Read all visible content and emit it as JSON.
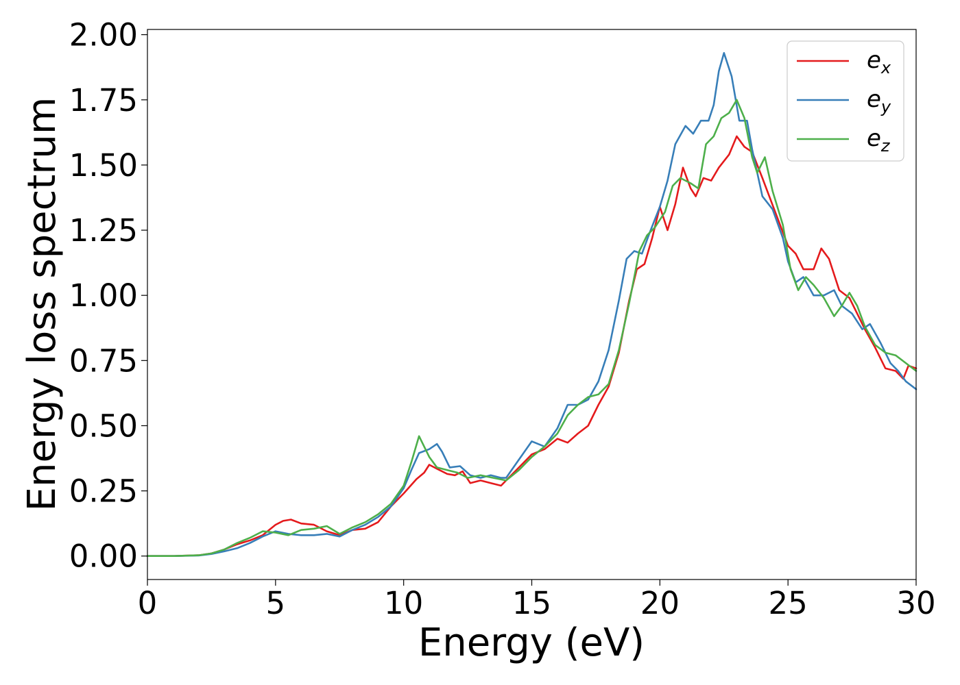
{
  "chart_data": {
    "type": "line",
    "title": "",
    "xlabel": "Energy (eV)",
    "ylabel": "Energy loss spectrum",
    "xlim": [
      0,
      30
    ],
    "ylim": [
      -0.09,
      2.02
    ],
    "xticks": [
      0,
      5,
      10,
      15,
      20,
      25,
      30
    ],
    "xtick_labels": [
      "0",
      "5",
      "10",
      "15",
      "20",
      "25",
      "30"
    ],
    "yticks": [
      0,
      0.25,
      0.5,
      0.75,
      1.0,
      1.25,
      1.5,
      1.75,
      2.0
    ],
    "ytick_labels": [
      "0.00",
      "0.25",
      "0.50",
      "0.75",
      "1.00",
      "1.25",
      "1.50",
      "1.75",
      "2.00"
    ],
    "grid": false,
    "legend": {
      "position": "top-right"
    },
    "series": [
      {
        "name": "e_x",
        "label_base": "e",
        "label_sub": "x",
        "color": "#e41a1c",
        "points": [
          [
            0,
            0
          ],
          [
            1,
            0
          ],
          [
            2,
            0.003
          ],
          [
            2.5,
            0.01
          ],
          [
            3,
            0.025
          ],
          [
            3.5,
            0.045
          ],
          [
            4,
            0.06
          ],
          [
            4.5,
            0.08
          ],
          [
            5,
            0.12
          ],
          [
            5.3,
            0.135
          ],
          [
            5.6,
            0.14
          ],
          [
            6,
            0.125
          ],
          [
            6.5,
            0.12
          ],
          [
            7,
            0.095
          ],
          [
            7.5,
            0.08
          ],
          [
            8,
            0.1
          ],
          [
            8.5,
            0.105
          ],
          [
            9,
            0.13
          ],
          [
            9.5,
            0.19
          ],
          [
            10,
            0.24
          ],
          [
            10.5,
            0.295
          ],
          [
            10.8,
            0.32
          ],
          [
            11,
            0.35
          ],
          [
            11.3,
            0.335
          ],
          [
            11.7,
            0.315
          ],
          [
            12,
            0.31
          ],
          [
            12.3,
            0.325
          ],
          [
            12.6,
            0.28
          ],
          [
            13,
            0.29
          ],
          [
            13.4,
            0.28
          ],
          [
            13.8,
            0.27
          ],
          [
            14,
            0.29
          ],
          [
            14.5,
            0.34
          ],
          [
            15,
            0.39
          ],
          [
            15.5,
            0.41
          ],
          [
            16,
            0.45
          ],
          [
            16.4,
            0.435
          ],
          [
            16.8,
            0.47
          ],
          [
            17.2,
            0.5
          ],
          [
            17.6,
            0.58
          ],
          [
            18,
            0.65
          ],
          [
            18.4,
            0.78
          ],
          [
            18.8,
            0.98
          ],
          [
            19.1,
            1.1
          ],
          [
            19.4,
            1.12
          ],
          [
            19.7,
            1.22
          ],
          [
            20,
            1.34
          ],
          [
            20.3,
            1.25
          ],
          [
            20.6,
            1.35
          ],
          [
            20.9,
            1.49
          ],
          [
            21.2,
            1.41
          ],
          [
            21.4,
            1.38
          ],
          [
            21.7,
            1.45
          ],
          [
            22,
            1.44
          ],
          [
            22.3,
            1.49
          ],
          [
            22.7,
            1.54
          ],
          [
            23,
            1.61
          ],
          [
            23.3,
            1.57
          ],
          [
            23.6,
            1.55
          ],
          [
            24,
            1.45
          ],
          [
            24.5,
            1.32
          ],
          [
            25,
            1.19
          ],
          [
            25.3,
            1.16
          ],
          [
            25.6,
            1.1
          ],
          [
            26,
            1.1
          ],
          [
            26.3,
            1.18
          ],
          [
            26.6,
            1.14
          ],
          [
            27,
            1.02
          ],
          [
            27.4,
            0.99
          ],
          [
            27.7,
            0.93
          ],
          [
            28,
            0.87
          ],
          [
            28.4,
            0.8
          ],
          [
            28.8,
            0.72
          ],
          [
            29.2,
            0.71
          ],
          [
            29.5,
            0.68
          ],
          [
            29.7,
            0.73
          ],
          [
            30,
            0.72
          ]
        ]
      },
      {
        "name": "e_y",
        "label_base": "e",
        "label_sub": "y",
        "color": "#377eb8",
        "points": [
          [
            0,
            0
          ],
          [
            1,
            0
          ],
          [
            2,
            0.002
          ],
          [
            2.5,
            0.008
          ],
          [
            3,
            0.018
          ],
          [
            3.5,
            0.03
          ],
          [
            4,
            0.05
          ],
          [
            4.5,
            0.075
          ],
          [
            5,
            0.095
          ],
          [
            5.5,
            0.085
          ],
          [
            6,
            0.08
          ],
          [
            6.5,
            0.08
          ],
          [
            7,
            0.085
          ],
          [
            7.5,
            0.075
          ],
          [
            8,
            0.1
          ],
          [
            8.5,
            0.12
          ],
          [
            9,
            0.15
          ],
          [
            9.5,
            0.19
          ],
          [
            10,
            0.26
          ],
          [
            10.3,
            0.33
          ],
          [
            10.6,
            0.395
          ],
          [
            11,
            0.41
          ],
          [
            11.3,
            0.43
          ],
          [
            11.5,
            0.4
          ],
          [
            11.8,
            0.34
          ],
          [
            12.2,
            0.345
          ],
          [
            12.6,
            0.31
          ],
          [
            13,
            0.3
          ],
          [
            13.4,
            0.31
          ],
          [
            13.8,
            0.3
          ],
          [
            14,
            0.3
          ],
          [
            14.5,
            0.37
          ],
          [
            15,
            0.44
          ],
          [
            15.5,
            0.42
          ],
          [
            16,
            0.49
          ],
          [
            16.4,
            0.58
          ],
          [
            16.8,
            0.58
          ],
          [
            17.2,
            0.6
          ],
          [
            17.6,
            0.67
          ],
          [
            18,
            0.79
          ],
          [
            18.4,
            0.98
          ],
          [
            18.7,
            1.14
          ],
          [
            19,
            1.17
          ],
          [
            19.3,
            1.16
          ],
          [
            19.6,
            1.24
          ],
          [
            20,
            1.34
          ],
          [
            20.3,
            1.44
          ],
          [
            20.6,
            1.58
          ],
          [
            21,
            1.65
          ],
          [
            21.3,
            1.62
          ],
          [
            21.6,
            1.67
          ],
          [
            21.9,
            1.67
          ],
          [
            22.1,
            1.73
          ],
          [
            22.3,
            1.86
          ],
          [
            22.5,
            1.93
          ],
          [
            22.8,
            1.84
          ],
          [
            23.1,
            1.67
          ],
          [
            23.4,
            1.67
          ],
          [
            23.6,
            1.56
          ],
          [
            24,
            1.38
          ],
          [
            24.4,
            1.33
          ],
          [
            24.8,
            1.22
          ],
          [
            25,
            1.13
          ],
          [
            25.3,
            1.05
          ],
          [
            25.6,
            1.07
          ],
          [
            26,
            1.0
          ],
          [
            26.4,
            1.0
          ],
          [
            26.8,
            1.02
          ],
          [
            27.1,
            0.96
          ],
          [
            27.5,
            0.93
          ],
          [
            27.9,
            0.87
          ],
          [
            28.2,
            0.89
          ],
          [
            28.6,
            0.82
          ],
          [
            29,
            0.74
          ],
          [
            29.3,
            0.71
          ],
          [
            29.6,
            0.67
          ],
          [
            30,
            0.64
          ]
        ]
      },
      {
        "name": "e_z",
        "label_base": "e",
        "label_sub": "z",
        "color": "#4daf4a",
        "points": [
          [
            0,
            0
          ],
          [
            1,
            0
          ],
          [
            2,
            0.003
          ],
          [
            2.5,
            0.01
          ],
          [
            3,
            0.025
          ],
          [
            3.5,
            0.05
          ],
          [
            4,
            0.07
          ],
          [
            4.5,
            0.095
          ],
          [
            5,
            0.09
          ],
          [
            5.5,
            0.08
          ],
          [
            6,
            0.1
          ],
          [
            6.5,
            0.105
          ],
          [
            7,
            0.115
          ],
          [
            7.5,
            0.085
          ],
          [
            8,
            0.11
          ],
          [
            8.5,
            0.13
          ],
          [
            9,
            0.16
          ],
          [
            9.5,
            0.2
          ],
          [
            10,
            0.27
          ],
          [
            10.3,
            0.36
          ],
          [
            10.6,
            0.46
          ],
          [
            11,
            0.38
          ],
          [
            11.3,
            0.34
          ],
          [
            11.7,
            0.33
          ],
          [
            12.1,
            0.32
          ],
          [
            12.5,
            0.3
          ],
          [
            13,
            0.31
          ],
          [
            13.5,
            0.3
          ],
          [
            14,
            0.29
          ],
          [
            14.5,
            0.33
          ],
          [
            15,
            0.38
          ],
          [
            15.5,
            0.42
          ],
          [
            16,
            0.47
          ],
          [
            16.4,
            0.54
          ],
          [
            16.8,
            0.58
          ],
          [
            17.2,
            0.61
          ],
          [
            17.6,
            0.62
          ],
          [
            18,
            0.66
          ],
          [
            18.4,
            0.79
          ],
          [
            18.8,
            0.97
          ],
          [
            19.2,
            1.17
          ],
          [
            19.5,
            1.23
          ],
          [
            19.8,
            1.26
          ],
          [
            20.2,
            1.32
          ],
          [
            20.5,
            1.42
          ],
          [
            20.8,
            1.45
          ],
          [
            21.2,
            1.43
          ],
          [
            21.5,
            1.41
          ],
          [
            21.8,
            1.58
          ],
          [
            22.1,
            1.61
          ],
          [
            22.4,
            1.68
          ],
          [
            22.7,
            1.7
          ],
          [
            23,
            1.75
          ],
          [
            23.3,
            1.68
          ],
          [
            23.6,
            1.53
          ],
          [
            23.8,
            1.47
          ],
          [
            24.1,
            1.53
          ],
          [
            24.4,
            1.4
          ],
          [
            24.8,
            1.27
          ],
          [
            25.1,
            1.1
          ],
          [
            25.4,
            1.02
          ],
          [
            25.7,
            1.07
          ],
          [
            26,
            1.04
          ],
          [
            26.4,
            0.99
          ],
          [
            26.8,
            0.92
          ],
          [
            27.1,
            0.96
          ],
          [
            27.4,
            1.01
          ],
          [
            27.7,
            0.96
          ],
          [
            28,
            0.88
          ],
          [
            28.4,
            0.81
          ],
          [
            28.8,
            0.78
          ],
          [
            29.2,
            0.77
          ],
          [
            29.6,
            0.74
          ],
          [
            30,
            0.71
          ]
        ]
      }
    ]
  }
}
